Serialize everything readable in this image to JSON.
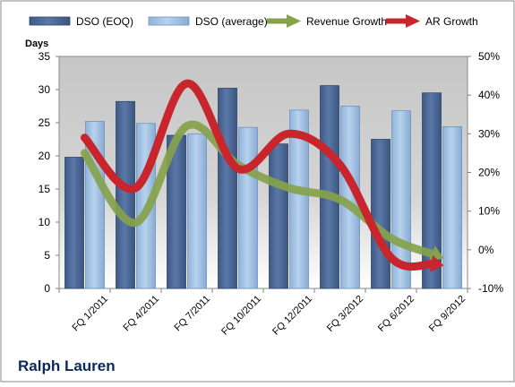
{
  "chart_data": {
    "type": "bar",
    "title": "Ralph Lauren",
    "ylabel": "Days",
    "categories": [
      "FQ 1/2011",
      "FQ 4/2011",
      "FQ 7/2011",
      "FQ 10/2011",
      "FQ 12/2011",
      "FQ 3/2012",
      "FQ 6/2012",
      "FQ 9/2012"
    ],
    "ylim": [
      0,
      35
    ],
    "y_ticks": [
      "0",
      "5",
      "10",
      "15",
      "20",
      "25",
      "30",
      "35"
    ],
    "y2lim": [
      -10,
      50
    ],
    "y2_ticks": [
      "-10%",
      "0%",
      "10%",
      "20%",
      "30%",
      "40%",
      "50%"
    ],
    "grid": false,
    "legend_position": "top",
    "series": [
      {
        "name": "DSO (EOQ)",
        "kind": "bar",
        "axis": "left",
        "color": "#4f6b98",
        "values": [
          19.8,
          28.2,
          23.1,
          30.2,
          21.8,
          30.6,
          22.5,
          29.5
        ]
      },
      {
        "name": "DSO (average)",
        "kind": "bar",
        "axis": "left",
        "color": "#a8c6e6",
        "values": [
          25.2,
          24.9,
          23.3,
          24.3,
          26.9,
          27.5,
          26.8,
          24.4
        ]
      },
      {
        "name": "Revenue Growth",
        "kind": "arrow-line",
        "axis": "right",
        "color": "#86a24b",
        "values": [
          25,
          7,
          32,
          22,
          16,
          13,
          3,
          -2
        ]
      },
      {
        "name": "AR Growth",
        "kind": "arrow-line",
        "axis": "right",
        "color": "#c8252c",
        "values": [
          29,
          16,
          43,
          21,
          30,
          22,
          -2,
          -4
        ]
      }
    ]
  }
}
